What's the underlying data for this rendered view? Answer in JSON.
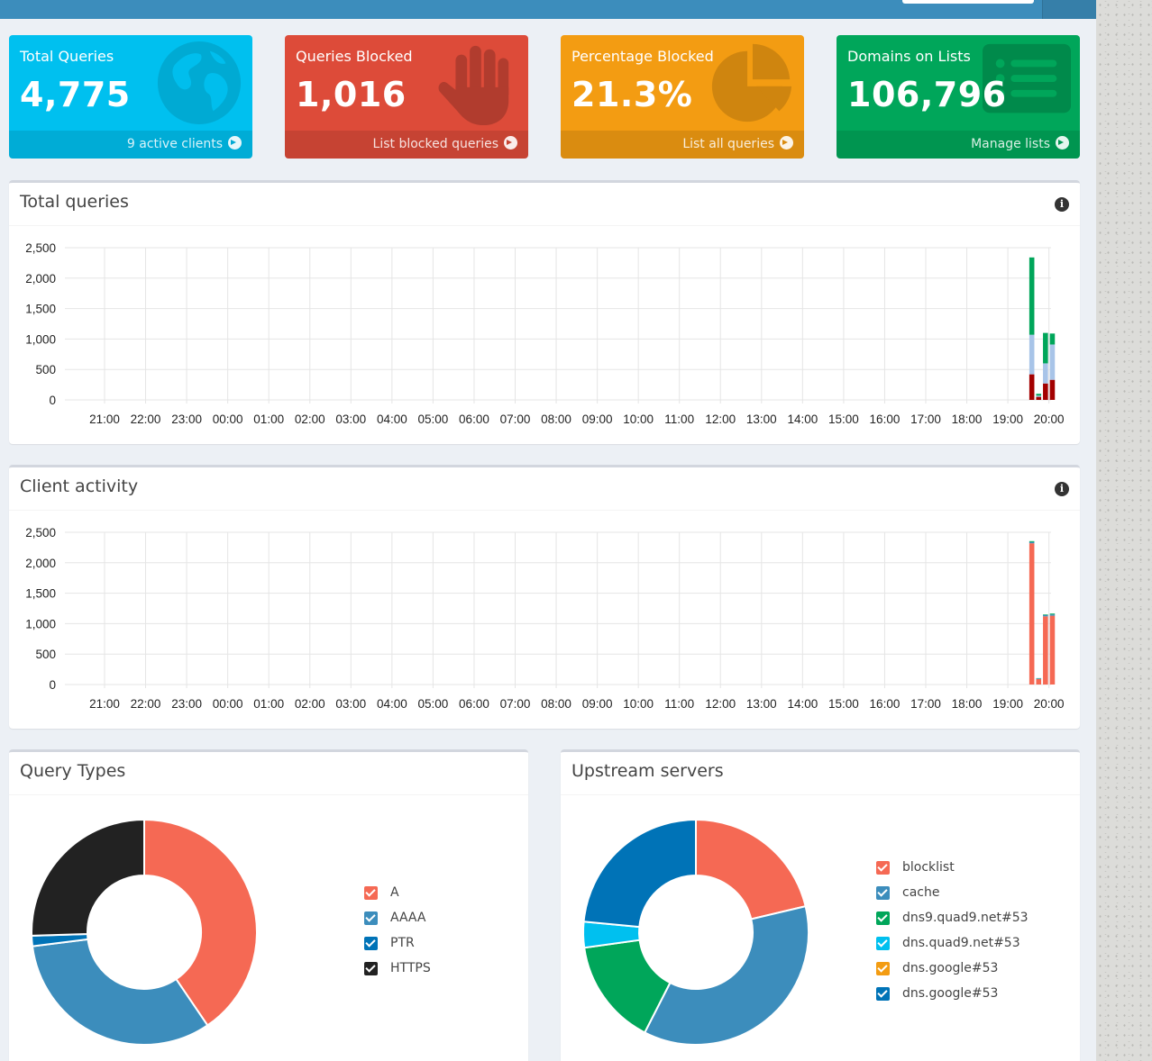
{
  "colors": {
    "aqua": "#00c0ef",
    "red": "#dd4b39",
    "yellow": "#f39c12",
    "green": "#00a65a",
    "navbar": "#3c8dbc"
  },
  "stats": [
    {
      "title": "Total Queries",
      "value": "4,775",
      "footer": "9 active clients",
      "icon": "globe-icon"
    },
    {
      "title": "Queries Blocked",
      "value": "1,016",
      "footer": "List blocked queries",
      "icon": "hand-icon"
    },
    {
      "title": "Percentage Blocked",
      "value": "21.3%",
      "footer": "List all queries",
      "icon": "pie-chart-icon"
    },
    {
      "title": "Domains on Lists",
      "value": "106,796",
      "footer": "Manage lists",
      "icon": "list-icon"
    }
  ],
  "panels": {
    "total_queries": {
      "title": "Total queries"
    },
    "client_activity": {
      "title": "Client activity"
    },
    "query_types": {
      "title": "Query Types"
    },
    "upstream_servers": {
      "title": "Upstream servers"
    }
  },
  "chart_data": [
    {
      "type": "bar",
      "id": "total-queries",
      "stacked": true,
      "categories": [
        "19:30",
        "19:40",
        "19:50",
        "20:00"
      ],
      "series": [
        {
          "color": "#a30000",
          "values": [
            420,
            50,
            270,
            330
          ]
        },
        {
          "color": "#a8c4e8",
          "values": [
            650,
            20,
            330,
            580
          ]
        },
        {
          "color": "#00a65a",
          "values": [
            1270,
            30,
            500,
            180
          ]
        }
      ],
      "x_ticks": [
        "21:00",
        "22:00",
        "23:00",
        "00:00",
        "01:00",
        "02:00",
        "03:00",
        "04:00",
        "05:00",
        "06:00",
        "07:00",
        "08:00",
        "09:00",
        "10:00",
        "11:00",
        "12:00",
        "13:00",
        "14:00",
        "15:00",
        "16:00",
        "17:00",
        "18:00",
        "19:00",
        "20:00"
      ],
      "y_ticks": [
        "2,500",
        "2,000",
        "1,500",
        "1,000",
        "500",
        "0"
      ],
      "ylim": [
        0,
        2500
      ],
      "grid": true
    },
    {
      "type": "bar",
      "id": "client-activity",
      "stacked": true,
      "categories": [
        "19:30",
        "19:40",
        "19:50",
        "20:00"
      ],
      "series": [
        {
          "color": "#f56954",
          "values": [
            2320,
            90,
            1120,
            1130
          ]
        },
        {
          "color": "#3c8dbc",
          "values": [
            20,
            10,
            20,
            20
          ]
        },
        {
          "color": "#00a65a",
          "values": [
            15,
            5,
            10,
            15
          ]
        }
      ],
      "x_ticks": [
        "21:00",
        "22:00",
        "23:00",
        "00:00",
        "01:00",
        "02:00",
        "03:00",
        "04:00",
        "05:00",
        "06:00",
        "07:00",
        "08:00",
        "09:00",
        "10:00",
        "11:00",
        "12:00",
        "13:00",
        "14:00",
        "15:00",
        "16:00",
        "17:00",
        "18:00",
        "19:00",
        "20:00"
      ],
      "y_ticks": [
        "2,500",
        "2,000",
        "1,500",
        "1,000",
        "500",
        "0"
      ],
      "ylim": [
        0,
        2500
      ],
      "grid": true
    },
    {
      "type": "pie",
      "id": "query-types",
      "donut": true,
      "labels": [
        "A",
        "AAAA",
        "PTR",
        "HTTPS"
      ],
      "values": [
        40.5,
        32.5,
        1.5,
        25.5
      ],
      "colors": [
        "#f56954",
        "#3c8dbc",
        "#0073b7",
        "#222222"
      ],
      "legend_position": "right"
    },
    {
      "type": "pie",
      "id": "upstream-servers",
      "donut": true,
      "labels": [
        "blocklist",
        "cache",
        "dns9.quad9.net#53",
        "dns.quad9.net#53",
        "dns.google#53",
        "dns.google#53"
      ],
      "values": [
        21.3,
        36.2,
        15.3,
        3.7,
        0.0,
        23.5
      ],
      "colors": [
        "#f56954",
        "#3c8dbc",
        "#00a65a",
        "#00c0ef",
        "#f39c12",
        "#0073b7"
      ],
      "legend_position": "right"
    }
  ]
}
